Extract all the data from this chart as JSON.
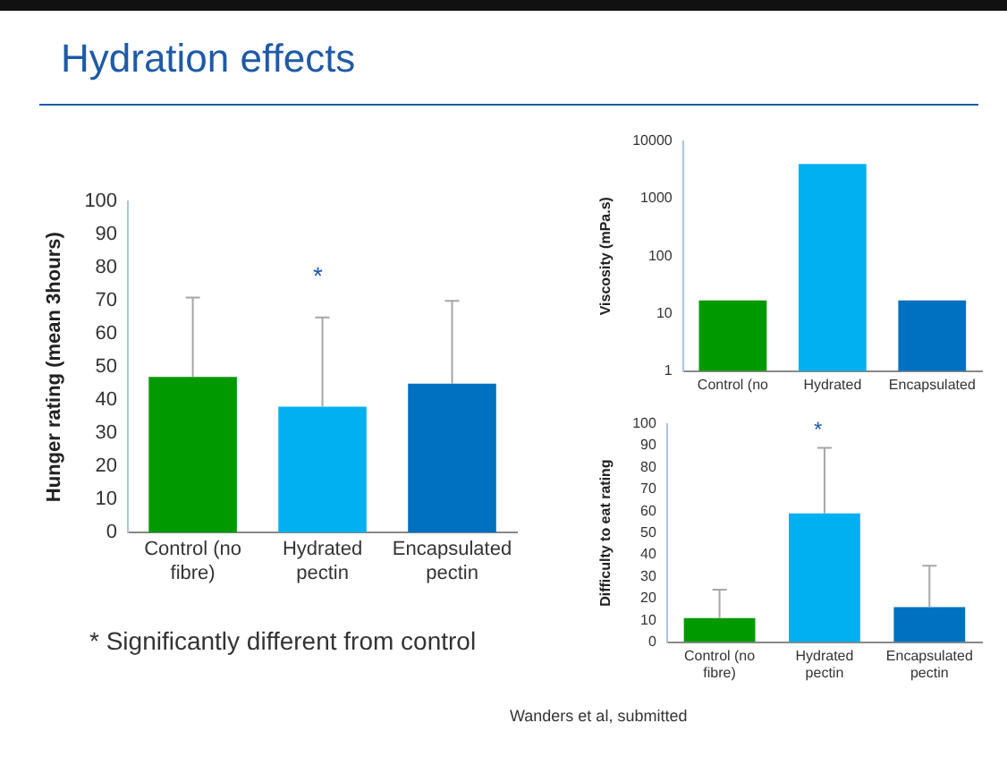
{
  "chart_data": [
    {
      "type": "bar",
      "title": "Hydration effects",
      "ylabel": "Hunger rating (mean 3hours)",
      "categories": [
        "Control (no fibre)",
        "Hydrated pectin",
        "Encapsulated pectin"
      ],
      "values": [
        47,
        38,
        45
      ],
      "colors": [
        "#009900",
        "#00b0f0",
        "#0070c0"
      ],
      "errors": [
        [
          47,
          71
        ],
        [
          38,
          65
        ],
        [
          45,
          70
        ]
      ],
      "ylim": [
        0,
        100
      ],
      "yticks": [
        0,
        10,
        20,
        30,
        40,
        50,
        60,
        70,
        80,
        90,
        100
      ],
      "grid": false,
      "legend": false,
      "annotations": [
        "*",
        "* Significantly different from control"
      ]
    },
    {
      "type": "bar",
      "ylabel": "Viscosity (mPa.s)",
      "categories": [
        "Control (no",
        "Hydrated",
        "Encapsulated"
      ],
      "values": [
        17,
        4000,
        17
      ],
      "colors": [
        "#009900",
        "#00b0f0",
        "#0070c0"
      ],
      "log": "y",
      "ylim": [
        1,
        10000
      ],
      "yticks": [
        1,
        10,
        100,
        1000,
        10000
      ],
      "grid": false,
      "legend": false
    },
    {
      "type": "bar",
      "ylabel": "Difficulty to eat rating",
      "categories": [
        "Control (no fibre)",
        "Hydrated pectin",
        "Encapsulated pectin"
      ],
      "values": [
        11,
        59,
        16
      ],
      "colors": [
        "#009900",
        "#00b0f0",
        "#0070c0"
      ],
      "errors": [
        [
          11,
          24
        ],
        [
          59,
          89
        ],
        [
          16,
          35
        ]
      ],
      "ylim": [
        0,
        100
      ],
      "yticks": [
        0,
        10,
        20,
        30,
        40,
        50,
        60,
        70,
        80,
        90,
        100
      ],
      "grid": false,
      "legend": false,
      "annotations": [
        "*",
        "Wanders et al, submitted"
      ]
    }
  ]
}
